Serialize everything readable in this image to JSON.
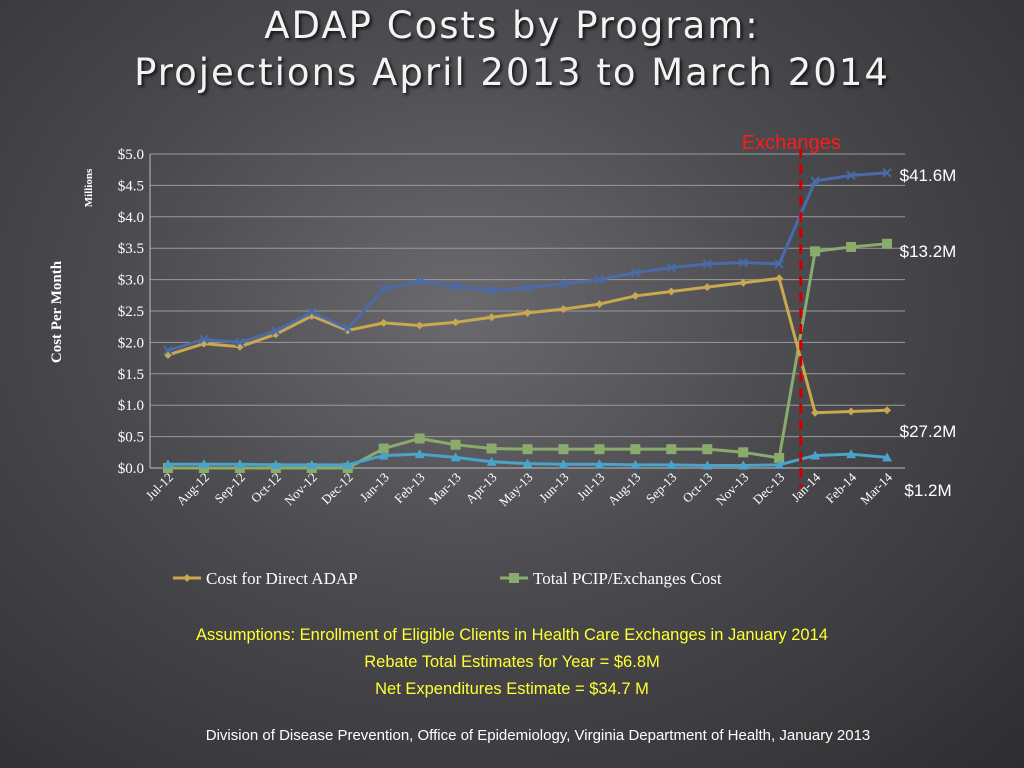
{
  "slide": {
    "title_line1": "ADAP Costs by Program:",
    "title_line2": "Projections April 2013 to March 2014",
    "assumptions": [
      "Assumptions: Enrollment of Eligible Clients in Health Care Exchanges in January 2014",
      "Rebate Total Estimates for Year = $6.8M",
      "Net Expenditures Estimate = $34.7 M"
    ],
    "footer": "Division of Disease Prevention, Office of Epidemiology, Virginia Department of Health, January 2013"
  },
  "colors": {
    "total": "#4a6aa8",
    "direct": "#c9a84f",
    "pcip": "#8aab6b",
    "other": "#4aa3c8",
    "marker_line": "#cc0000",
    "marker_label": "#ff1a1a",
    "axis_text": "#ffffff",
    "grid": "#9a9a9a"
  },
  "chart_data": {
    "type": "line",
    "ylabel": "Cost Per Month",
    "yunit": "Millions",
    "ylim": [
      0,
      5.0
    ],
    "yticks": [
      "$0.0",
      "$0.5",
      "$1.0",
      "$1.5",
      "$2.0",
      "$2.5",
      "$3.0",
      "$3.5",
      "$4.0",
      "$4.5",
      "$5.0"
    ],
    "categories": [
      "Jul-12",
      "Aug-12",
      "Sep-12",
      "Oct-12",
      "Nov-12",
      "Dec-12",
      "Jan-13",
      "Feb-13",
      "Mar-13",
      "Apr-13",
      "May-13",
      "Jun-13",
      "Jul-13",
      "Aug-13",
      "Sep-13",
      "Oct-13",
      "Nov-13",
      "Dec-13",
      "Jan-14",
      "Feb-14",
      "Mar-14"
    ],
    "series": [
      {
        "key": "total",
        "marker": "x",
        "values": [
          1.87,
          2.05,
          2.0,
          2.18,
          2.48,
          2.22,
          2.85,
          2.97,
          2.89,
          2.83,
          2.87,
          2.93,
          3.0,
          3.11,
          3.19,
          3.25,
          3.27,
          3.25,
          4.57,
          4.66,
          4.7
        ]
      },
      {
        "key": "direct",
        "name": "Cost for Direct ADAP",
        "marker": "diamond",
        "values": [
          1.8,
          1.98,
          1.93,
          2.13,
          2.42,
          2.19,
          2.31,
          2.27,
          2.32,
          2.4,
          2.47,
          2.53,
          2.61,
          2.74,
          2.81,
          2.88,
          2.95,
          3.02,
          0.88,
          0.9,
          0.92
        ]
      },
      {
        "key": "pcip",
        "name": "Total PCIP/Exchanges Cost",
        "marker": "square",
        "values": [
          0.0,
          0.0,
          0.0,
          0.0,
          0.0,
          0.0,
          0.31,
          0.47,
          0.37,
          0.31,
          0.3,
          0.3,
          0.3,
          0.3,
          0.3,
          0.3,
          0.25,
          0.16,
          3.45,
          3.52,
          3.57
        ]
      },
      {
        "key": "other",
        "marker": "triangle",
        "values": [
          0.06,
          0.06,
          0.06,
          0.05,
          0.05,
          0.05,
          0.2,
          0.22,
          0.17,
          0.1,
          0.07,
          0.06,
          0.06,
          0.05,
          0.05,
          0.04,
          0.04,
          0.05,
          0.2,
          0.22,
          0.17
        ]
      }
    ],
    "marker_line": {
      "between": [
        "Dec-13",
        "Jan-14"
      ],
      "label": "Exchanges"
    },
    "annotations": [
      {
        "text": "$41.6M",
        "series": "total"
      },
      {
        "text": "$13.2M",
        "series": "pcip"
      },
      {
        "text": "$27.2M",
        "series": "direct"
      },
      {
        "text": "$1.2M",
        "series": "other"
      }
    ],
    "legend": {
      "placement": "bottom",
      "items": [
        {
          "series": "direct",
          "label": "Cost for Direct ADAP"
        },
        {
          "series": "pcip",
          "label": "Total PCIP/Exchanges Cost"
        }
      ]
    },
    "grid": true
  }
}
